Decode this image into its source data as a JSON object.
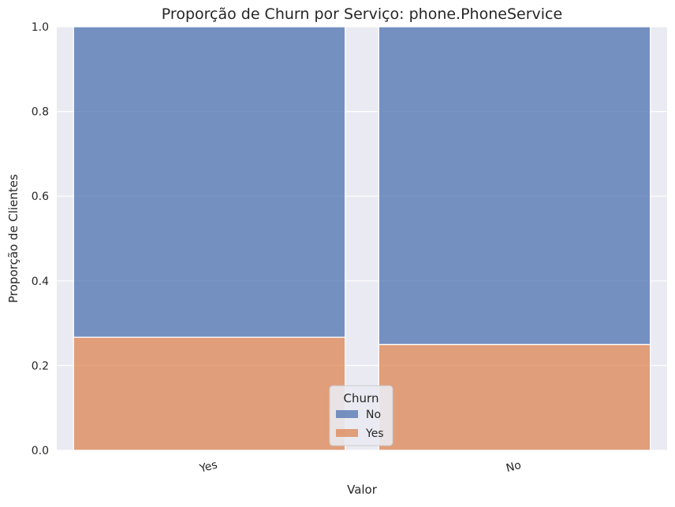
{
  "chart_data": {
    "type": "bar",
    "title": "Proporção de Churn por Serviço: phone.PhoneService",
    "xlabel": "Valor",
    "ylabel": "Proporção de Clientes",
    "categories": [
      "Yes",
      "No"
    ],
    "series": [
      {
        "name": "No",
        "values": [
          0.733,
          0.75
        ],
        "color": "#4c72b0"
      },
      {
        "name": "Yes",
        "values": [
          0.267,
          0.25
        ],
        "color": "#dd8452"
      }
    ],
    "stacked": true,
    "normalized": true,
    "ylim": [
      0,
      1.0
    ],
    "yticks": [
      "0.0",
      "0.2",
      "0.4",
      "0.6",
      "0.8",
      "1.0"
    ],
    "legend": {
      "title": "Churn",
      "entries": [
        "No",
        "Yes"
      ],
      "placement": "bottom-center"
    },
    "grid": true,
    "colors": {
      "background": "#eaeaf2",
      "grid": "#ffffff"
    }
  }
}
